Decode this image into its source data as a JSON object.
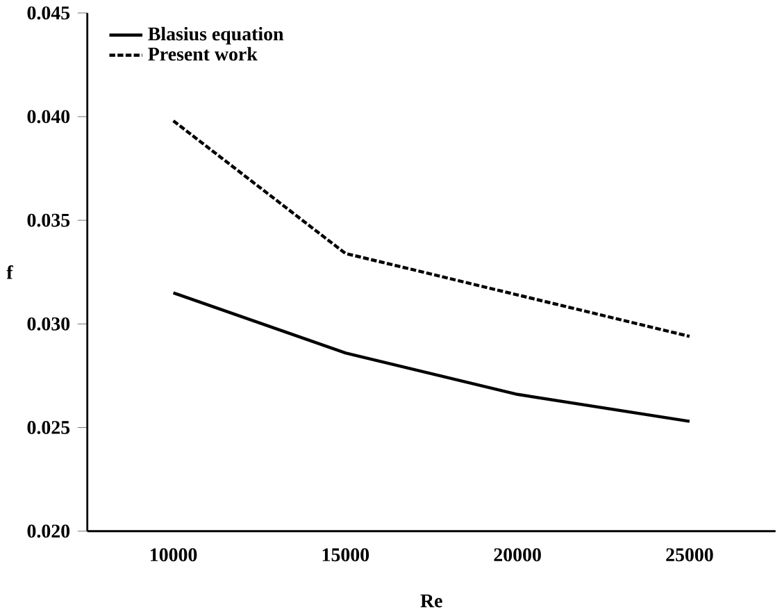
{
  "chart_data": {
    "type": "line",
    "xlabel": "Re",
    "ylabel": "f",
    "categories": [
      "10000",
      "15000",
      "20000",
      "25000"
    ],
    "series": [
      {
        "name": "Blasius equation",
        "color": "#000000",
        "line_style": "solid",
        "values": [
          0.0315,
          0.0286,
          0.0266,
          0.0253
        ]
      },
      {
        "name": "Present work",
        "color": "#000000",
        "line_style": "dashed",
        "values": [
          0.0398,
          0.0334,
          0.0314,
          0.0294
        ]
      }
    ],
    "ylim": [
      0.02,
      0.045
    ],
    "yticks": [
      {
        "value": 0.02,
        "label": "0.020"
      },
      {
        "value": 0.025,
        "label": "0.025"
      },
      {
        "value": 0.03,
        "label": "0.030"
      },
      {
        "value": 0.035,
        "label": "0.035"
      },
      {
        "value": 0.04,
        "label": "0.040"
      },
      {
        "value": 0.045,
        "label": "0.045"
      }
    ],
    "legend": "top left",
    "grid": false,
    "marker": "none"
  }
}
